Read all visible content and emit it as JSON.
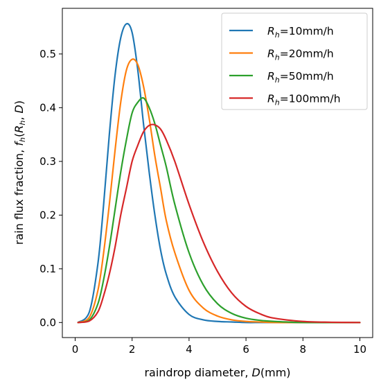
{
  "chart_data": {
    "type": "line",
    "xlabel": {
      "text": "raindrop diameter, ",
      "italic_var": "D",
      "suffix": "(mm)"
    },
    "ylabel": {
      "text": "rain flux fraction, ",
      "func": "f",
      "func_sub": "h",
      "open": "(",
      "arg_var": "R",
      "arg_sub": "h",
      "sep": ", ",
      "arg2": "D",
      "close": ")"
    },
    "xlim": [
      -0.45,
      10.45
    ],
    "ylim": [
      -0.028,
      0.585
    ],
    "xticks": [
      0,
      2,
      4,
      6,
      8,
      10
    ],
    "xtick_labels": [
      "0",
      "2",
      "4",
      "6",
      "8",
      "10"
    ],
    "yticks": [
      0.0,
      0.1,
      0.2,
      0.3,
      0.4,
      0.5
    ],
    "ytick_labels": [
      "0.0",
      "0.1",
      "0.2",
      "0.3",
      "0.4",
      "0.5"
    ],
    "grid": false,
    "legend_position": "top-right",
    "x": [
      0.1,
      0.5,
      0.8,
      1.0,
      1.2,
      1.4,
      1.6,
      1.8,
      2.0,
      2.2,
      2.4,
      2.6,
      2.8,
      3.0,
      3.2,
      3.5,
      4.0,
      4.5,
      5.0,
      5.5,
      6.0,
      6.5,
      7.0,
      8.0,
      9.0,
      10.0
    ],
    "series": [
      {
        "var": "R",
        "sub": "h",
        "rest": "=10mm/h",
        "color": "#1f77b4",
        "values": [
          0.0,
          0.02,
          0.11,
          0.22,
          0.35,
          0.46,
          0.53,
          0.556,
          0.54,
          0.47,
          0.37,
          0.28,
          0.2,
          0.135,
          0.09,
          0.048,
          0.015,
          0.005,
          0.002,
          0.001,
          0.0,
          0.0,
          0.0,
          0.0,
          0.0,
          0.0
        ]
      },
      {
        "var": "R",
        "sub": "h",
        "rest": "=20mm/h",
        "color": "#ff7f0e",
        "values": [
          0.0,
          0.01,
          0.06,
          0.13,
          0.22,
          0.32,
          0.41,
          0.47,
          0.49,
          0.48,
          0.44,
          0.38,
          0.31,
          0.25,
          0.19,
          0.13,
          0.06,
          0.027,
          0.012,
          0.005,
          0.002,
          0.001,
          0.0,
          0.0,
          0.0,
          0.0
        ]
      },
      {
        "var": "R",
        "sub": "h",
        "rest": "=50mm/h",
        "color": "#2ca02c",
        "values": [
          0.0,
          0.005,
          0.035,
          0.08,
          0.14,
          0.21,
          0.28,
          0.34,
          0.39,
          0.41,
          0.418,
          0.4,
          0.37,
          0.33,
          0.29,
          0.22,
          0.13,
          0.07,
          0.035,
          0.017,
          0.008,
          0.004,
          0.002,
          0.0,
          0.0,
          0.0
        ]
      },
      {
        "var": "R",
        "sub": "h",
        "rest": "=100mm/h",
        "color": "#d62728",
        "values": [
          0.0,
          0.003,
          0.02,
          0.05,
          0.09,
          0.14,
          0.2,
          0.25,
          0.3,
          0.33,
          0.355,
          0.367,
          0.368,
          0.36,
          0.34,
          0.3,
          0.22,
          0.15,
          0.095,
          0.055,
          0.03,
          0.016,
          0.008,
          0.002,
          0.0005,
          0.0
        ]
      }
    ]
  }
}
